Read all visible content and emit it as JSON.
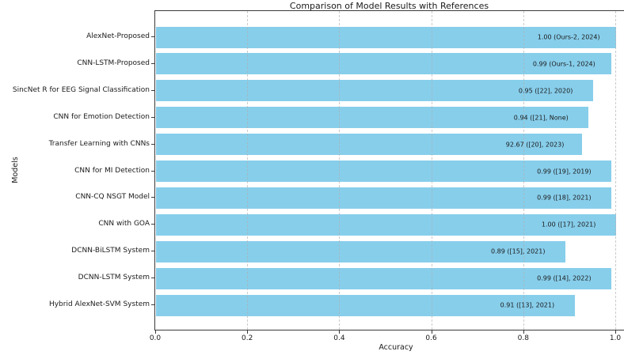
{
  "chart_data": {
    "type": "bar",
    "orientation": "horizontal",
    "title": "Comparison of Model Results with References",
    "xlabel": "Accuracy",
    "ylabel": "Models",
    "xlim": [
      0,
      1.02
    ],
    "grid": "vertical-dashed",
    "legend": "none",
    "bar_color": "#87CEEB",
    "categories": [
      "AlexNet-Proposed",
      "CNN-LSTM-Proposed",
      "SincNet R for EEG Signal Classification",
      "CNN for Emotion Detection",
      "Transfer Learning with CNNs",
      "CNN for MI Detection",
      "CNN-CQ NSGT Model",
      "CNN with GOA",
      "DCNN-BiLSTM System",
      "DCNN-LSTM System",
      "Hybrid AlexNet-SVM System"
    ],
    "values": [
      1.0,
      0.99,
      0.95,
      0.94,
      0.9267,
      0.99,
      0.99,
      1.0,
      0.89,
      0.99,
      0.91
    ],
    "bar_labels": [
      "1.00 (Ours-2, 2024)",
      "0.99 (Ours-1, 2024)",
      "0.95 ([22], 2020)",
      "0.94 ([21], None)",
      "92.67 ([20], 2023)",
      "0.99 ([19], 2019)",
      "0.99 ([18], 2021)",
      "1.00 ([17], 2021)",
      "0.89 ([15], 2021)",
      "0.99 ([14], 2022)",
      "0.91 ([13], 2021)"
    ],
    "xticks": [
      {
        "value": 0.0,
        "label": "0.0"
      },
      {
        "value": 0.2,
        "label": "0.2"
      },
      {
        "value": 0.4,
        "label": "0.4"
      },
      {
        "value": 0.6,
        "label": "0.6"
      },
      {
        "value": 0.8,
        "label": "0.8"
      },
      {
        "value": 1.0,
        "label": "1.0"
      }
    ]
  }
}
